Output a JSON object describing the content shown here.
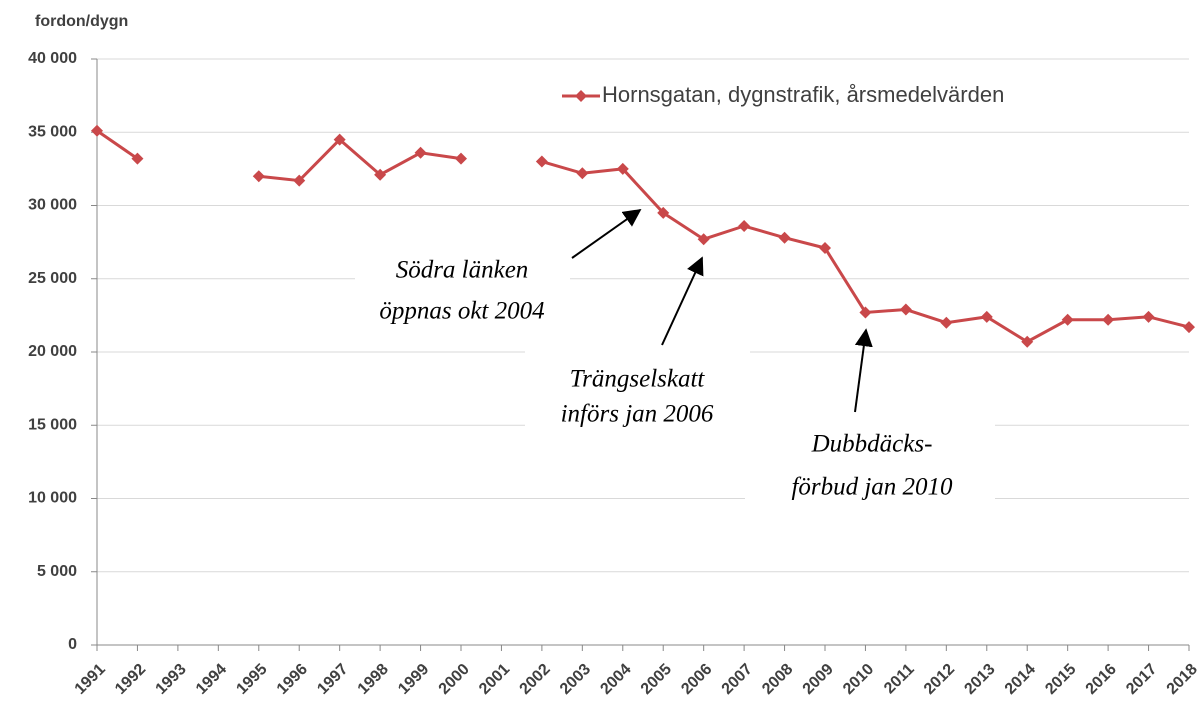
{
  "chart_data": {
    "type": "line",
    "y_label": "fordon/dygn",
    "categories": [
      "1991",
      "1992",
      "1993",
      "1994",
      "1995",
      "1996",
      "1997",
      "1998",
      "1999",
      "2000",
      "2001",
      "2002",
      "2003",
      "2004",
      "2005",
      "2006",
      "2007",
      "2008",
      "2009",
      "2010",
      "2011",
      "2012",
      "2013",
      "2014",
      "2015",
      "2016",
      "2017",
      "2018"
    ],
    "series": [
      {
        "name": "Hornsgatan, dygnstrafik, årsmedelvärden",
        "color": "#c9484a",
        "values": [
          35100,
          33200,
          null,
          null,
          32000,
          31700,
          34500,
          32100,
          33600,
          33200,
          null,
          33000,
          32200,
          32500,
          29500,
          27700,
          28600,
          27800,
          27100,
          22700,
          22900,
          22000,
          22400,
          20700,
          22200,
          22200,
          22400,
          21700
        ]
      }
    ],
    "ylim": [
      0,
      40000
    ],
    "yticks": [
      0,
      {
        "value": 5000,
        "label": "5 000"
      },
      {
        "value": 10000,
        "label": "10 000"
      },
      {
        "value": 15000,
        "label": "15 000"
      },
      {
        "value": 20000,
        "label": "20 000"
      },
      {
        "value": 25000,
        "label": "25 000"
      },
      {
        "value": 30000,
        "label": "30 000"
      },
      {
        "value": 35000,
        "label": "35 000"
      },
      {
        "value": 40000,
        "label": "40 000"
      }
    ],
    "grid": true,
    "legend": "top-right",
    "annotations": [
      {
        "lines": [
          "Södra länken",
          "öppnas okt 2004"
        ]
      },
      {
        "lines": [
          "Trängselskatt",
          "införs jan 2006"
        ]
      },
      {
        "lines": [
          "Dubbdäcks-",
          "förbud jan 2010"
        ]
      }
    ]
  }
}
